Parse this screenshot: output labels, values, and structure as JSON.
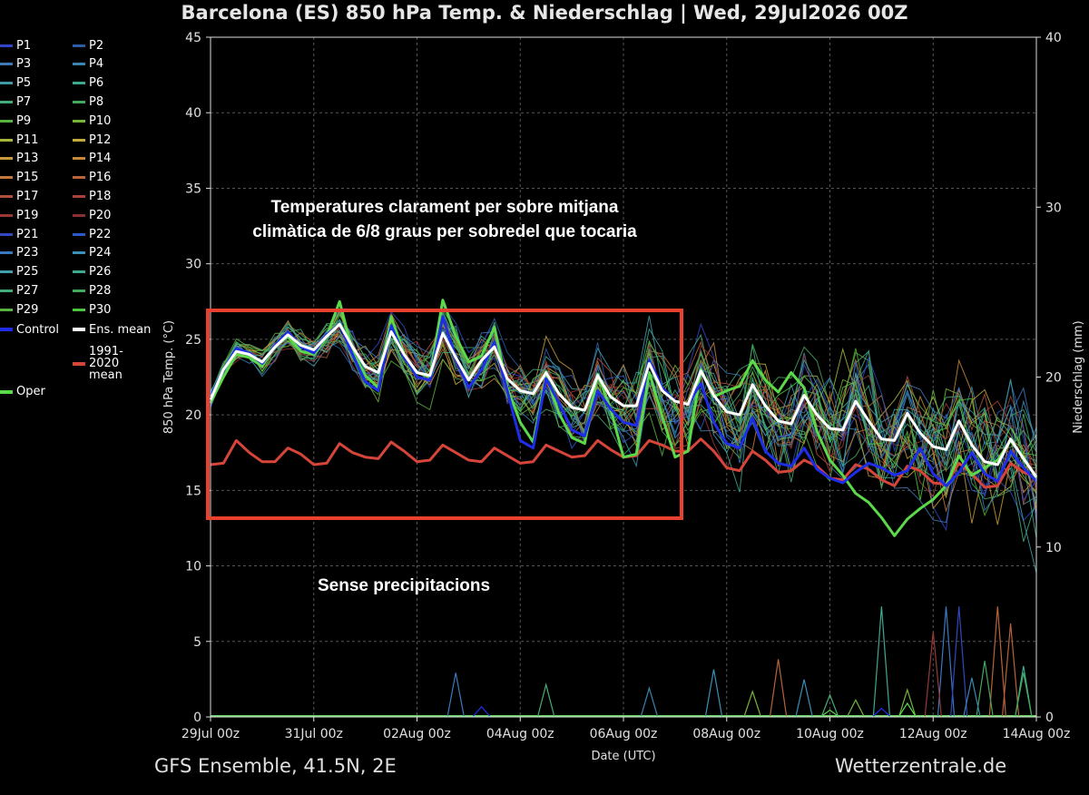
{
  "title": "Barcelona  (ES)  850 hPa Temp. & Niederschlag | Wed, 29Jul2026 00Z",
  "footer": {
    "left": "GFS Ensemble, 41.5N, 2E",
    "right": "Wetterzentrale.de"
  },
  "annotations": {
    "top_line1": "Temperatures clarament per sobre mitjana",
    "top_line2": "climàtica de 6/8 graus per sobredel que tocaria",
    "bottom": "Sense precipitacions"
  },
  "colors": {
    "highlight_box": "#e8412f",
    "background": "#000000"
  },
  "legend": [
    {
      "label": "P1",
      "color": "#2f46c8"
    },
    {
      "label": "P2",
      "color": "#2e5ca8"
    },
    {
      "label": "P3",
      "color": "#3f7ab5"
    },
    {
      "label": "P4",
      "color": "#3b86b0"
    },
    {
      "label": "P5",
      "color": "#3f9aa8"
    },
    {
      "label": "P6",
      "color": "#3ea890"
    },
    {
      "label": "P7",
      "color": "#44ad75"
    },
    {
      "label": "P8",
      "color": "#44a95c"
    },
    {
      "label": "P9",
      "color": "#56b33f"
    },
    {
      "label": "P10",
      "color": "#76b53a"
    },
    {
      "label": "P11",
      "color": "#a9b63a"
    },
    {
      "label": "P12",
      "color": "#c4aa3a"
    },
    {
      "label": "P13",
      "color": "#c89a3a"
    },
    {
      "label": "P14",
      "color": "#c8883a"
    },
    {
      "label": "P15",
      "color": "#c2783a"
    },
    {
      "label": "P16",
      "color": "#b8633a"
    },
    {
      "label": "P17",
      "color": "#b0503a"
    },
    {
      "label": "P18",
      "color": "#a8423a"
    },
    {
      "label": "P19",
      "color": "#9a3838"
    },
    {
      "label": "P20",
      "color": "#8a3030"
    },
    {
      "label": "P21",
      "color": "#3048c0"
    },
    {
      "label": "P22",
      "color": "#2f58c8"
    },
    {
      "label": "P23",
      "color": "#3a78c0"
    },
    {
      "label": "P24",
      "color": "#3a90b8"
    },
    {
      "label": "P25",
      "color": "#40a0ae"
    },
    {
      "label": "P26",
      "color": "#3ea890"
    },
    {
      "label": "P27",
      "color": "#44ad75"
    },
    {
      "label": "P28",
      "color": "#44a95c"
    },
    {
      "label": "P29",
      "color": "#56b33f"
    },
    {
      "label": "P30",
      "color": "#4cc63c"
    },
    {
      "label": "Control",
      "color": "#1f2de8"
    },
    {
      "label": "Ens. mean",
      "color": "#ffffff"
    },
    {
      "label": "1991-2020 mean",
      "color": "#d6453a"
    },
    {
      "label": "Oper",
      "color": "#5cd94a"
    }
  ],
  "chart_data": {
    "type": "line",
    "xlabel": "Date (UTC)",
    "ylabel": "850 hPa Temp. (°C)",
    "y2label": "Niederschlag (mm)",
    "x_ticks": [
      "29Jul 00z",
      "31Jul 00z",
      "02Aug 00z",
      "04Aug 00z",
      "06Aug 00z",
      "08Aug 00z",
      "10Aug 00z",
      "12Aug 00z",
      "14Aug 00z"
    ],
    "x_range_days": [
      0,
      16
    ],
    "ylim": [
      0,
      45
    ],
    "y_ticks": [
      0,
      5,
      10,
      15,
      20,
      25,
      30,
      35,
      40,
      45
    ],
    "y2lim": [
      0,
      40
    ],
    "y2_ticks": [
      0,
      10,
      20,
      30,
      40
    ],
    "grid": true,
    "legend_position": "left",
    "series": [
      {
        "name": "Ens. mean",
        "color": "#ffffff",
        "width": 3,
        "values": [
          21.0,
          23.0,
          24.2,
          24.0,
          23.5,
          24.5,
          25.3,
          24.6,
          24.3,
          25.2,
          26.0,
          24.5,
          23.2,
          22.8,
          25.5,
          24.0,
          22.8,
          22.6,
          25.4,
          23.8,
          22.3,
          23.6,
          24.5,
          22.4,
          21.6,
          21.4,
          22.8,
          21.4,
          20.5,
          20.3,
          22.6,
          21.2,
          20.6,
          20.6,
          23.4,
          21.6,
          20.9,
          20.7,
          22.9,
          21.3,
          20.2,
          20.0,
          22.0,
          20.6,
          19.6,
          19.4,
          21.3,
          20.0,
          19.1,
          19.0,
          20.9,
          19.6,
          18.4,
          18.3,
          20.1,
          18.8,
          17.9,
          17.7,
          19.6,
          18.0,
          16.9,
          16.7,
          18.4,
          17.1,
          15.9
        ]
      },
      {
        "name": "Control",
        "color": "#1f2de8",
        "width": 3,
        "values": [
          21.2,
          23.0,
          24.4,
          24.1,
          23.4,
          24.6,
          25.5,
          24.5,
          24.1,
          25.3,
          26.0,
          24.0,
          22.2,
          21.6,
          25.9,
          23.9,
          22.5,
          22.3,
          26.5,
          23.8,
          21.8,
          23.0,
          24.8,
          21.6,
          18.3,
          17.8,
          22.4,
          20.8,
          19.0,
          18.6,
          21.6,
          20.4,
          19.5,
          19.3,
          23.6,
          21.8,
          20.9,
          20.7,
          22.1,
          19.5,
          18.1,
          17.8,
          19.8,
          17.6,
          16.8,
          16.6,
          17.8,
          16.4,
          15.8,
          15.5,
          16.2,
          16.8,
          16.5,
          16.0,
          16.3,
          17.8,
          16.1,
          15.3,
          16.2,
          17.5,
          16.1,
          15.6,
          17.6,
          16.5,
          15.6
        ]
      },
      {
        "name": "Oper",
        "color": "#5cd94a",
        "width": 3,
        "values": [
          20.8,
          22.5,
          24.0,
          23.8,
          23.2,
          24.6,
          25.2,
          24.2,
          24.0,
          25.2,
          27.5,
          24.2,
          22.6,
          21.8,
          26.5,
          24.0,
          22.8,
          22.5,
          27.6,
          25.2,
          23.5,
          23.9,
          25.8,
          21.8,
          19.5,
          18.2,
          22.6,
          20.1,
          18.5,
          18.1,
          22.7,
          20.4,
          17.2,
          17.4,
          22.8,
          19.9,
          17.2,
          17.6,
          23.0,
          21.2,
          21.6,
          21.9,
          23.6,
          22.3,
          21.5,
          22.8,
          21.8,
          18.9,
          17.0,
          16.0,
          14.8,
          14.2,
          13.2,
          12.0,
          13.1,
          13.8,
          14.4,
          15.3,
          17.3,
          16.0,
          16.5,
          17.0,
          18.3,
          17.2,
          15.8
        ]
      },
      {
        "name": "1991-2020 mean",
        "color": "#d6453a",
        "width": 3,
        "values": [
          16.7,
          16.8,
          18.3,
          17.5,
          16.9,
          16.9,
          17.8,
          17.4,
          16.7,
          16.8,
          18.1,
          17.5,
          17.2,
          17.1,
          18.2,
          17.6,
          16.9,
          17.0,
          18.0,
          17.5,
          17.0,
          16.9,
          17.8,
          17.3,
          16.8,
          16.9,
          18.0,
          17.6,
          17.2,
          17.3,
          18.3,
          17.7,
          17.2,
          17.3,
          18.3,
          18.0,
          17.6,
          17.6,
          18.4,
          17.6,
          16.5,
          16.3,
          17.6,
          17.0,
          16.2,
          16.3,
          17.0,
          16.6,
          15.8,
          15.7,
          16.7,
          16.4,
          15.7,
          15.3,
          16.6,
          16.3,
          15.5,
          15.4,
          16.8,
          16.1,
          15.2,
          15.3,
          16.8,
          16.2,
          15.9
        ]
      }
    ],
    "members_note": "30 perturbed members (P1–P30) spread around the ensemble mean",
    "precipitation": [
      {
        "name": "P23",
        "color": "#3a78c0",
        "spikes": [
          [
            4.75,
            2.6
          ],
          [
            14.25,
            6.5
          ]
        ]
      },
      {
        "name": "P27",
        "color": "#44ad75",
        "spikes": [
          [
            6.5,
            1.9
          ],
          [
            12.0,
            1.3
          ]
        ]
      },
      {
        "name": "P16",
        "color": "#b8633a",
        "spikes": [
          [
            11.0,
            3.4
          ],
          [
            15.25,
            6.5
          ],
          [
            15.5,
            5.5
          ]
        ]
      },
      {
        "name": "P21",
        "color": "#3048c0",
        "spikes": [
          [
            14.5,
            6.5
          ]
        ]
      },
      {
        "name": "P19",
        "color": "#9a3838",
        "spikes": [
          [
            14.0,
            5.0
          ]
        ]
      },
      {
        "name": "P26",
        "color": "#3ea890",
        "spikes": [
          [
            13.0,
            6.5
          ],
          [
            15.75,
            3.0
          ]
        ]
      },
      {
        "name": "P8",
        "color": "#44a95c",
        "spikes": [
          [
            15.0,
            3.3
          ],
          [
            15.75,
            2.6
          ]
        ]
      },
      {
        "name": "P10",
        "color": "#76b53a",
        "spikes": [
          [
            10.5,
            1.5
          ],
          [
            13.5,
            1.6
          ],
          [
            12.5,
            1.0
          ]
        ]
      },
      {
        "name": "P24",
        "color": "#3a90b8",
        "spikes": [
          [
            9.75,
            2.8
          ],
          [
            11.5,
            2.2
          ]
        ]
      },
      {
        "name": "P4",
        "color": "#3b86b0",
        "spikes": [
          [
            14.75,
            2.3
          ],
          [
            8.5,
            1.7
          ]
        ]
      },
      {
        "name": "Control",
        "color": "#1f2de8",
        "spikes": [
          [
            5.25,
            0.6
          ],
          [
            13.0,
            0.5
          ]
        ]
      },
      {
        "name": "Oper",
        "color": "#5cd94a",
        "spikes": [
          [
            13.5,
            0.8
          ],
          [
            12.0,
            0.4
          ]
        ]
      }
    ]
  }
}
